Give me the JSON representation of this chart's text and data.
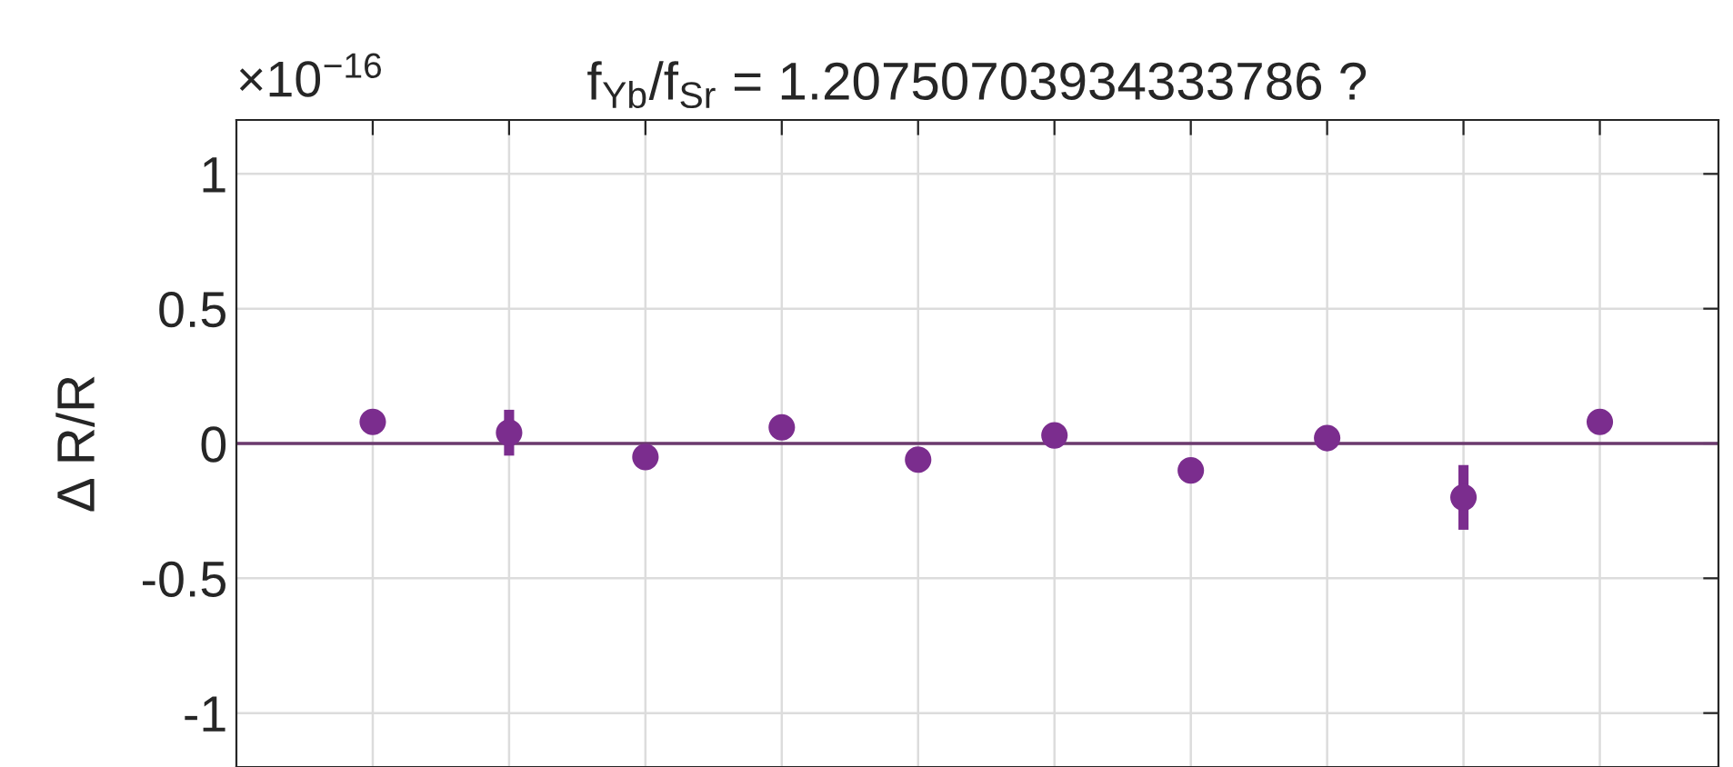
{
  "chart_data": {
    "type": "scatter",
    "title": "f$_{Yb}$/f$_{Sr}$ = 1.20750703934333786 ?",
    "ylabel": "Δ R/R",
    "annotations": [
      "×10$^{−16}$"
    ],
    "categories": [
      null,
      null,
      null,
      null,
      null,
      null,
      null,
      null,
      null,
      null
    ],
    "series": [
      {
        "color": "#7b2d8e",
        "values": [
          0.08,
          0.04,
          -0.05,
          0.06,
          -0.06,
          0.03,
          -0.1,
          0.02,
          -0.2,
          0.08
        ],
        "errors": [
          null,
          0.085,
          null,
          null,
          null,
          null,
          0.04,
          null,
          0.12,
          null
        ]
      }
    ],
    "ylim": [
      -1.2,
      1.2
    ],
    "yticks": [
      {
        "value": -1,
        "label": "-1"
      },
      {
        "value": -0.5,
        "label": "-0.5"
      },
      0,
      0.5,
      1
    ],
    "ref_lines": [
      {
        "axis": "y",
        "value": 0,
        "label": null,
        "color": "#6b3a6e"
      }
    ],
    "grid": true,
    "marker": "circle",
    "tick_labels": "y"
  }
}
